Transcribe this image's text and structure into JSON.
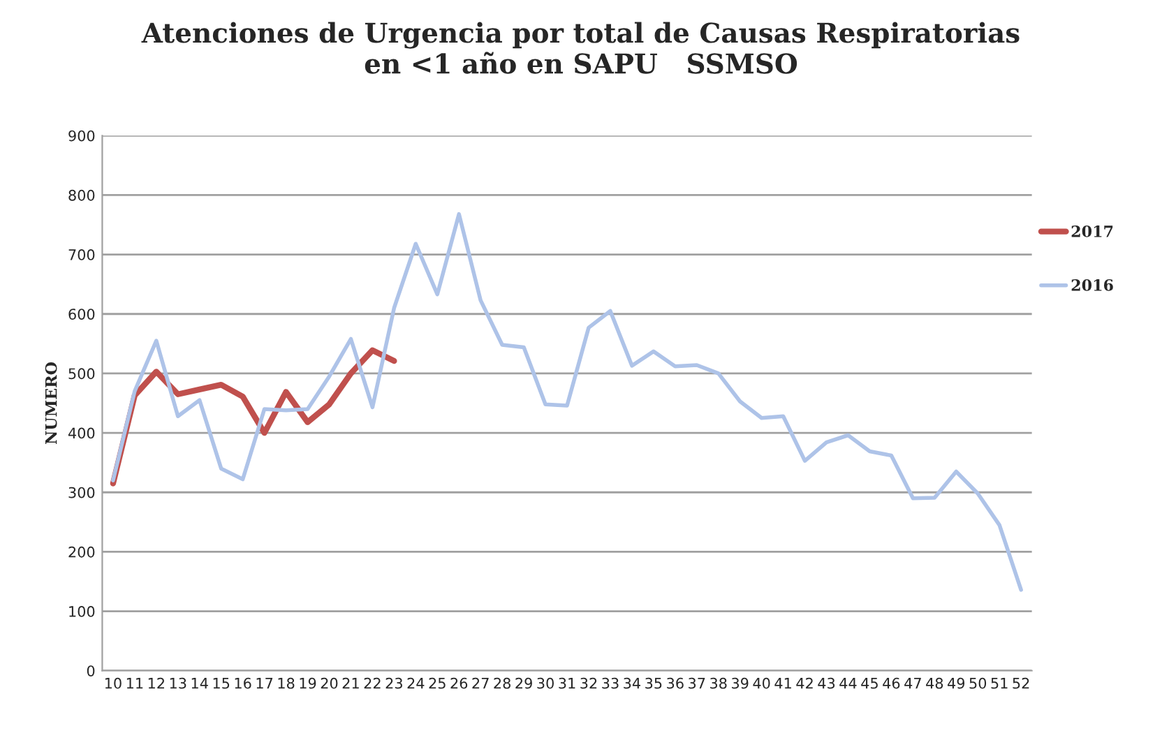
{
  "chart_data": {
    "type": "line",
    "title": "Atenciones de Urgencia por total de Causas Respiratorias\nen <1 año en SAPU   SSMSO",
    "ylabel": "NUMERO",
    "categories": [
      "10",
      "11",
      "12",
      "13",
      "14",
      "15",
      "16",
      "17",
      "18",
      "19",
      "20",
      "21",
      "22",
      "23",
      "24",
      "25",
      "26",
      "27",
      "28",
      "29",
      "30",
      "31",
      "32",
      "33",
      "34",
      "35",
      "36",
      "37",
      "38",
      "39",
      "40",
      "41",
      "42",
      "43",
      "44",
      "45",
      "46",
      "47",
      "48",
      "49",
      "50",
      "51",
      "52"
    ],
    "series": [
      {
        "name": "2017",
        "color": "#c0504d",
        "values": [
          315,
          463,
          503,
          465,
          473,
          481,
          461,
          400,
          469,
          418,
          448,
          500,
          539,
          521,
          null,
          null,
          null,
          null,
          null,
          null,
          null,
          null,
          null,
          null,
          null,
          null,
          null,
          null,
          null,
          null,
          null,
          null,
          null,
          null,
          null,
          null,
          null,
          null,
          null,
          null,
          null,
          null,
          null
        ]
      },
      {
        "name": "2016",
        "color": "#aec3e8",
        "values": [
          320,
          470,
          555,
          428,
          455,
          340,
          322,
          440,
          438,
          440,
          495,
          558,
          443,
          610,
          718,
          633,
          768,
          623,
          548,
          544,
          448,
          446,
          577,
          605,
          513,
          537,
          512,
          514,
          500,
          453,
          425,
          428,
          353,
          384,
          396,
          369,
          362,
          290,
          291,
          335,
          298,
          245,
          136
        ]
      }
    ],
    "ylim": [
      0,
      900
    ],
    "yticks": [
      0,
      100,
      200,
      300,
      400,
      500,
      600,
      700,
      800,
      900
    ],
    "grid": "y",
    "legend": "right",
    "marker": "none",
    "line_style": "solid"
  }
}
